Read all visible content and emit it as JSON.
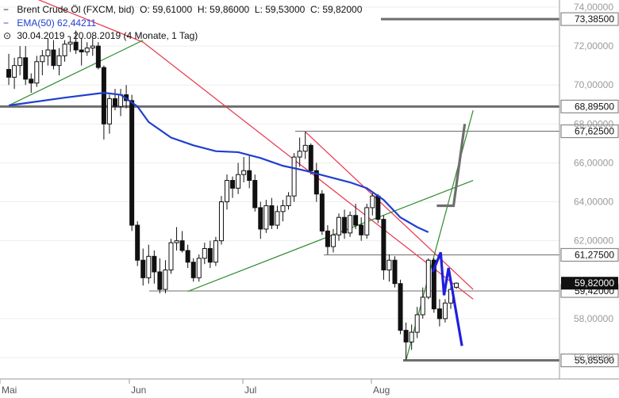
{
  "chart_data": {
    "type": "candlestick",
    "title": "Brent Crude Öl (FXCM, bid)",
    "ohlc_summary": {
      "O": "59,61000",
      "H": "59,86000",
      "L": "59,53000",
      "C": "59,82000"
    },
    "indicator": {
      "name": "EMA(50)",
      "value": "62,44211",
      "color": "#1f3fcf"
    },
    "range_text": "30.04.2019 - 20.08.2019",
    "range_info": "(4 Monate, 1 Tag)",
    "ylim": [
      54.9,
      74.0
    ],
    "y_ticks": [
      "74,00000",
      "72,00000",
      "70,00000",
      "68,00000",
      "66,00000",
      "64,00000",
      "62,00000",
      "58,00000",
      "56,00000"
    ],
    "x_ticks": [
      {
        "label": "Mai",
        "x": 0
      },
      {
        "label": "Jun",
        "x": 23
      },
      {
        "label": "Jul",
        "x": 43
      },
      {
        "label": "Aug",
        "x": 66
      }
    ],
    "horizontal_levels": [
      {
        "label": "73,38500",
        "value": 73.385,
        "color": "#6e6e6e",
        "style": "thick"
      },
      {
        "label": "68,89500",
        "value": 68.895,
        "color": "#6e6e6e",
        "style": "thick"
      },
      {
        "label": "67,62500",
        "value": 67.625,
        "color": "#6e6e6e",
        "style": "thin"
      },
      {
        "label": "61,27500",
        "value": 61.275,
        "color": "#6e6e6e",
        "style": "thin"
      },
      {
        "label": "59,42000",
        "value": 59.42,
        "color": "#6e6e6e",
        "style": "thin"
      },
      {
        "label": "55,85500",
        "value": 55.855,
        "color": "#6e6e6e",
        "style": "thick"
      }
    ],
    "current_price": {
      "label": "59,82000",
      "value": 59.82
    },
    "candles": [
      [
        -1,
        70.8,
        71.6,
        70.0,
        70.4
      ],
      [
        0,
        70.4,
        71.4,
        69.8,
        71.0
      ],
      [
        1,
        71.0,
        72.0,
        70.5,
        71.4
      ],
      [
        2,
        71.4,
        72.0,
        70.0,
        70.3
      ],
      [
        3,
        70.3,
        70.6,
        69.6,
        70.1
      ],
      [
        4,
        70.1,
        71.5,
        69.9,
        71.2
      ],
      [
        5,
        71.2,
        71.8,
        70.5,
        71.5
      ],
      [
        6,
        71.5,
        72.4,
        71.0,
        71.8
      ],
      [
        7,
        71.8,
        72.3,
        70.8,
        71.0
      ],
      [
        8,
        71.0,
        71.9,
        70.5,
        71.5
      ],
      [
        9,
        71.5,
        72.3,
        71.2,
        72.1
      ],
      [
        10,
        72.1,
        72.5,
        71.7,
        72.2
      ],
      [
        11,
        72.2,
        72.8,
        71.6,
        71.8
      ],
      [
        12,
        71.8,
        72.4,
        71.0,
        71.7
      ],
      [
        13,
        71.7,
        72.2,
        71.5,
        71.9
      ],
      [
        14,
        71.9,
        72.4,
        71.5,
        72.0
      ],
      [
        15,
        72.0,
        72.2,
        70.8,
        70.9
      ],
      [
        16,
        70.9,
        71.0,
        67.2,
        68.0
      ],
      [
        17,
        68.0,
        69.5,
        67.5,
        69.3
      ],
      [
        18,
        69.3,
        69.8,
        68.7,
        68.9
      ],
      [
        19,
        68.9,
        69.8,
        68.4,
        69.5
      ],
      [
        20,
        69.5,
        70.0,
        68.8,
        69.2
      ],
      [
        21,
        69.2,
        69.5,
        62.5,
        62.8
      ],
      [
        22,
        62.8,
        63.0,
        60.7,
        61.0
      ],
      [
        23,
        61.0,
        61.6,
        59.7,
        60.1
      ],
      [
        24,
        60.1,
        61.8,
        59.8,
        61.2
      ],
      [
        25,
        61.2,
        61.5,
        59.8,
        60.4
      ],
      [
        26,
        60.4,
        61.1,
        59.3,
        59.5
      ],
      [
        27,
        59.5,
        61.0,
        59.3,
        60.5
      ],
      [
        28,
        60.5,
        62.1,
        60.3,
        61.9
      ],
      [
        29,
        61.9,
        62.7,
        61.5,
        62.0
      ],
      [
        30,
        62.0,
        62.5,
        61.4,
        61.5
      ],
      [
        31,
        61.5,
        61.8,
        60.6,
        60.9
      ],
      [
        32,
        60.9,
        61.1,
        59.9,
        60.1
      ],
      [
        33,
        60.1,
        61.3,
        59.9,
        61.1
      ],
      [
        34,
        61.1,
        61.9,
        60.8,
        61.6
      ],
      [
        35,
        61.6,
        62.0,
        60.6,
        60.9
      ],
      [
        36,
        60.9,
        62.2,
        60.7,
        62.0
      ],
      [
        37,
        62.0,
        64.3,
        61.8,
        64.0
      ],
      [
        38,
        64.0,
        65.4,
        63.6,
        65.1
      ],
      [
        39,
        65.1,
        65.3,
        64.2,
        64.7
      ],
      [
        40,
        64.7,
        66.0,
        64.4,
        65.4
      ],
      [
        41,
        65.4,
        66.3,
        65.0,
        65.6
      ],
      [
        42,
        65.6,
        66.4,
        64.7,
        65.1
      ],
      [
        43,
        65.1,
        65.4,
        63.5,
        63.7
      ],
      [
        44,
        63.7,
        64.0,
        62.1,
        62.6
      ],
      [
        45,
        62.6,
        64.1,
        62.4,
        63.8
      ],
      [
        46,
        63.8,
        64.2,
        62.6,
        62.8
      ],
      [
        47,
        62.8,
        63.8,
        62.6,
        63.5
      ],
      [
        48,
        63.5,
        64.1,
        63.0,
        63.8
      ],
      [
        49,
        63.8,
        64.5,
        63.6,
        64.3
      ],
      [
        50,
        64.3,
        66.5,
        64.0,
        66.3
      ],
      [
        51,
        66.3,
        67.3,
        65.8,
        66.6
      ],
      [
        52,
        66.6,
        67.6,
        66.2,
        66.9
      ],
      [
        53,
        66.9,
        67.0,
        65.4,
        65.6
      ],
      [
        54,
        65.6,
        66.0,
        64.0,
        64.4
      ],
      [
        55,
        64.4,
        64.6,
        62.3,
        62.5
      ],
      [
        56,
        62.5,
        62.8,
        61.3,
        61.7
      ],
      [
        57,
        61.7,
        62.6,
        61.4,
        62.3
      ],
      [
        58,
        62.3,
        63.4,
        62.0,
        63.2
      ],
      [
        59,
        63.2,
        63.6,
        62.1,
        62.4
      ],
      [
        60,
        62.4,
        63.5,
        62.2,
        63.3
      ],
      [
        61,
        63.3,
        63.9,
        62.6,
        62.8
      ],
      [
        62,
        62.8,
        63.2,
        62.0,
        62.3
      ],
      [
        63,
        62.3,
        63.9,
        62.1,
        63.7
      ],
      [
        64,
        63.7,
        64.5,
        63.3,
        64.3
      ],
      [
        65,
        64.3,
        64.4,
        62.9,
        63.1
      ],
      [
        66,
        63.1,
        63.3,
        60.0,
        60.5
      ],
      [
        67,
        60.5,
        61.3,
        59.9,
        61.0
      ],
      [
        68,
        61.0,
        61.2,
        59.6,
        59.8
      ],
      [
        69,
        59.8,
        60.0,
        57.2,
        57.4
      ],
      [
        70,
        57.4,
        57.8,
        55.9,
        56.8
      ],
      [
        71,
        56.8,
        57.7,
        56.4,
        57.3
      ],
      [
        72,
        57.3,
        58.6,
        57.0,
        58.2
      ],
      [
        73,
        58.2,
        59.6,
        58.0,
        59.1
      ],
      [
        74,
        59.1,
        61.1,
        59.0,
        61.0
      ],
      [
        75,
        61.0,
        61.1,
        58.3,
        58.5
      ],
      [
        76,
        58.5,
        59.0,
        57.6,
        58.0
      ],
      [
        77,
        58.0,
        59.0,
        57.8,
        58.8
      ],
      [
        78,
        58.8,
        59.7,
        58.5,
        59.5
      ],
      [
        79,
        59.61,
        59.86,
        59.53,
        59.82
      ]
    ],
    "ema50": [
      [
        -1,
        68.95
      ],
      [
        9,
        69.35
      ],
      [
        16,
        69.6
      ],
      [
        19,
        69.5
      ],
      [
        22,
        68.9
      ],
      [
        24,
        68.1
      ],
      [
        28,
        67.3
      ],
      [
        32,
        66.9
      ],
      [
        36,
        66.6
      ],
      [
        40,
        66.55
      ],
      [
        44,
        66.25
      ],
      [
        48,
        65.85
      ],
      [
        52,
        65.6
      ],
      [
        56,
        65.3
      ],
      [
        60,
        65.0
      ],
      [
        63,
        64.7
      ],
      [
        66,
        64.1
      ],
      [
        69,
        63.2
      ],
      [
        72,
        62.7
      ],
      [
        74,
        62.44
      ]
    ],
    "trendlines": [
      {
        "name": "red-1",
        "color": "#e8334a",
        "points": [
          [
            -1,
            75.0
          ],
          [
            23,
            72.2
          ],
          [
            78,
            59.9
          ],
          [
            82,
            59.0
          ]
        ]
      },
      {
        "name": "red-2",
        "color": "#e8334a",
        "points": [
          [
            52,
            67.6
          ],
          [
            82,
            59.5
          ]
        ]
      },
      {
        "name": "green-1",
        "color": "#2e8b2e",
        "points": [
          [
            -1,
            68.95
          ],
          [
            23,
            72.3
          ]
        ]
      },
      {
        "name": "green-2",
        "color": "#2e8b2e",
        "points": [
          [
            31,
            59.4
          ],
          [
            82,
            65.1
          ]
        ]
      },
      {
        "name": "green-3",
        "color": "#2e8b2e",
        "points": [
          [
            70,
            55.855
          ],
          [
            82,
            68.7
          ]
        ]
      }
    ],
    "projections": [
      {
        "name": "bullish-projection",
        "color": "#6e6e6e",
        "points": [
          [
            75.5,
            63.8
          ],
          [
            78.5,
            63.8
          ],
          [
            80.5,
            68.0
          ]
        ]
      },
      {
        "name": "bearish-projection",
        "color": "#1f1fe0",
        "points": [
          [
            74.8,
            60.4
          ],
          [
            76.2,
            61.4
          ],
          [
            76.8,
            59.2
          ],
          [
            77.6,
            60.6
          ],
          [
            80.0,
            56.6
          ]
        ]
      }
    ]
  }
}
